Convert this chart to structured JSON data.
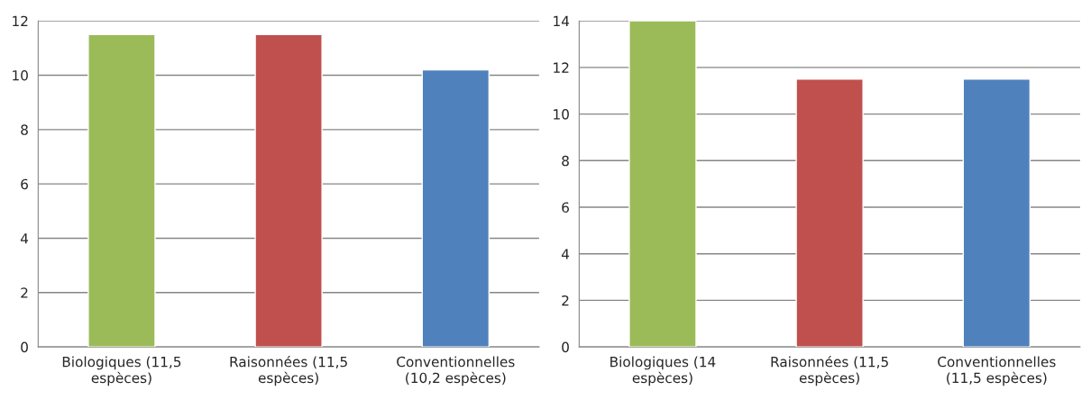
{
  "chart_data": [
    {
      "type": "bar",
      "categories": [
        "Biologiques (11,5\nespèces)",
        "Raisonnées (11,5\nespèces)",
        "Conventionnelles\n(10,2 espèces)"
      ],
      "values": [
        11.5,
        11.5,
        10.2
      ],
      "colors": [
        "#9bbb59",
        "#c0504d",
        "#4f81bd"
      ],
      "ylim": [
        0,
        12
      ],
      "yticks": [
        0,
        2,
        4,
        6,
        8,
        10,
        12
      ],
      "grid": "y"
    },
    {
      "type": "bar",
      "categories": [
        "Biologiques (14\nespèces)",
        "Raisonnées (11,5\nespèces)",
        "Conventionnelles\n(11,5 espèces)"
      ],
      "values": [
        14,
        11.5,
        11.5
      ],
      "colors": [
        "#9bbb59",
        "#c0504d",
        "#4f81bd"
      ],
      "ylim": [
        0,
        14
      ],
      "yticks": [
        0,
        2,
        4,
        6,
        8,
        10,
        12,
        14
      ],
      "grid": "y"
    }
  ]
}
